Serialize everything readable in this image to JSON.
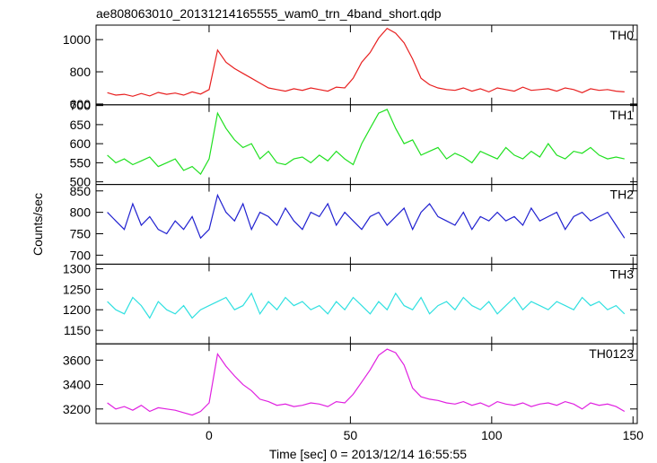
{
  "chart_data": {
    "type": "line",
    "title": "ae808063010_20131214165555_wam0_trn_4band_short.qdp",
    "ylabel": "Counts/sec",
    "xlabel": "Time [sec] 0 = 2013/12/14 16:55:55",
    "xlim": [
      -40,
      151.5
    ],
    "xticks": [
      0,
      50,
      100,
      150
    ],
    "x": [
      -36,
      -33,
      -30,
      -27,
      -24,
      -21,
      -18,
      -15,
      -12,
      -9,
      -6,
      -3,
      0,
      3,
      6,
      9,
      12,
      15,
      18,
      21,
      24,
      27,
      30,
      33,
      36,
      39,
      42,
      45,
      48,
      51,
      54,
      57,
      60,
      63,
      66,
      69,
      72,
      75,
      78,
      81,
      84,
      87,
      90,
      93,
      96,
      99,
      102,
      105,
      108,
      111,
      114,
      117,
      120,
      123,
      126,
      129,
      132,
      135,
      138,
      141,
      144,
      147
    ],
    "series": [
      {
        "name": "TH0",
        "color": "#e82020",
        "ylim": [
          595,
          1090
        ],
        "yticks": [
          600,
          800,
          1000
        ],
        "values": [
          670,
          655,
          660,
          648,
          665,
          650,
          672,
          660,
          668,
          655,
          675,
          662,
          690,
          935,
          860,
          820,
          790,
          760,
          730,
          700,
          690,
          680,
          695,
          685,
          700,
          690,
          680,
          705,
          700,
          760,
          860,
          920,
          1010,
          1070,
          1040,
          980,
          880,
          760,
          720,
          700,
          690,
          685,
          700,
          680,
          695,
          675,
          700,
          690,
          680,
          705,
          685,
          690,
          695,
          680,
          700,
          690,
          670,
          695,
          685,
          690,
          680,
          675
        ]
      },
      {
        "name": "TH1",
        "color": "#20e020",
        "ylim": [
          493,
          702
        ],
        "yticks": [
          500,
          550,
          600,
          650,
          700
        ],
        "values": [
          570,
          550,
          560,
          545,
          555,
          565,
          540,
          550,
          560,
          530,
          540,
          520,
          560,
          680,
          640,
          610,
          590,
          600,
          560,
          580,
          550,
          545,
          560,
          565,
          550,
          570,
          555,
          580,
          560,
          545,
          600,
          640,
          680,
          690,
          640,
          600,
          610,
          570,
          580,
          590,
          560,
          575,
          565,
          550,
          580,
          570,
          560,
          590,
          570,
          560,
          580,
          565,
          600,
          570,
          560,
          580,
          575,
          590,
          570,
          560,
          565,
          560
        ]
      },
      {
        "name": "TH2",
        "color": "#2020d0",
        "ylim": [
          679,
          865
        ],
        "yticks": [
          700,
          750,
          800,
          850
        ],
        "values": [
          800,
          780,
          760,
          820,
          770,
          790,
          760,
          750,
          780,
          760,
          790,
          740,
          760,
          840,
          800,
          780,
          820,
          760,
          800,
          790,
          770,
          810,
          780,
          760,
          800,
          790,
          820,
          770,
          800,
          780,
          760,
          790,
          800,
          770,
          790,
          810,
          760,
          800,
          820,
          790,
          780,
          770,
          800,
          760,
          790,
          780,
          800,
          780,
          790,
          770,
          810,
          780,
          790,
          800,
          760,
          790,
          800,
          780,
          790,
          800,
          770,
          740
        ]
      },
      {
        "name": "TH3",
        "color": "#30e0e0",
        "ylim": [
          1117,
          1311
        ],
        "yticks": [
          1150,
          1200,
          1250,
          1300
        ],
        "values": [
          1220,
          1200,
          1190,
          1230,
          1210,
          1180,
          1220,
          1200,
          1190,
          1210,
          1180,
          1200,
          1210,
          1220,
          1230,
          1200,
          1210,
          1240,
          1190,
          1220,
          1200,
          1230,
          1210,
          1220,
          1200,
          1210,
          1190,
          1220,
          1200,
          1230,
          1210,
          1190,
          1220,
          1200,
          1240,
          1210,
          1200,
          1230,
          1190,
          1210,
          1220,
          1200,
          1230,
          1210,
          1200,
          1220,
          1190,
          1210,
          1230,
          1200,
          1220,
          1210,
          1200,
          1220,
          1210,
          1200,
          1230,
          1210,
          1220,
          1200,
          1210,
          1190
        ]
      },
      {
        "name": "TH0123",
        "color": "#e020e0",
        "ylim": [
          3081,
          3733
        ],
        "yticks": [
          3200,
          3400,
          3600
        ],
        "values": [
          3250,
          3200,
          3220,
          3190,
          3230,
          3180,
          3210,
          3200,
          3190,
          3170,
          3150,
          3180,
          3250,
          3650,
          3550,
          3470,
          3400,
          3350,
          3280,
          3260,
          3230,
          3240,
          3220,
          3230,
          3250,
          3240,
          3220,
          3260,
          3250,
          3320,
          3420,
          3520,
          3640,
          3690,
          3660,
          3560,
          3370,
          3300,
          3280,
          3270,
          3250,
          3240,
          3260,
          3230,
          3250,
          3220,
          3260,
          3240,
          3230,
          3250,
          3220,
          3240,
          3250,
          3230,
          3260,
          3240,
          3200,
          3250,
          3230,
          3240,
          3220,
          3180
        ]
      }
    ]
  }
}
